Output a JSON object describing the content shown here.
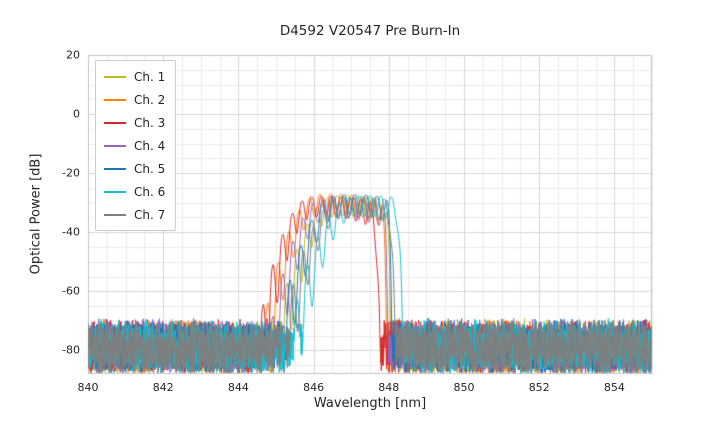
{
  "chart_data": {
    "type": "line",
    "title": "D4592 V20547 Pre Burn-In",
    "xlabel": "Wavelength [nm]",
    "ylabel": "Optical Power [dB]",
    "xlim": [
      840,
      855
    ],
    "ylim": [
      -88,
      20
    ],
    "x_ticks": [
      840,
      842,
      844,
      846,
      848,
      850,
      852,
      854
    ],
    "y_ticks": [
      20,
      0,
      -20,
      -40,
      -60,
      -80
    ],
    "x_minor_step": 0.5,
    "y_minor_step": 5,
    "grid": true,
    "legend_position": "upper left",
    "noise_floor": {
      "mean_db": -79.0,
      "spread_db": 16
    },
    "series": [
      {
        "name": "Ch. 1",
        "color": "#bcbd22",
        "center_nm": 846.9,
        "left_edge_nm": 845.0,
        "right_edge_nm": 848.05,
        "peak_db": -27.5,
        "ripple_period_nm": 0.27,
        "ripple_phase": 0.0,
        "seed": 101
      },
      {
        "name": "Ch. 2",
        "color": "#ff7f0e",
        "center_nm": 846.5,
        "left_edge_nm": 844.65,
        "right_edge_nm": 847.95,
        "peak_db": -27.0,
        "ripple_period_nm": 0.28,
        "ripple_phase": 1.1,
        "seed": 202
      },
      {
        "name": "Ch. 3",
        "color": "#d62728",
        "center_nm": 846.3,
        "left_edge_nm": 844.55,
        "right_edge_nm": 847.75,
        "peak_db": -27.8,
        "ripple_period_nm": 0.26,
        "ripple_phase": 2.2,
        "seed": 303
      },
      {
        "name": "Ch. 4",
        "color": "#9467bd",
        "center_nm": 846.65,
        "left_edge_nm": 844.85,
        "right_edge_nm": 848.0,
        "peak_db": -28.2,
        "ripple_period_nm": 0.27,
        "ripple_phase": 3.0,
        "seed": 404
      },
      {
        "name": "Ch. 5",
        "color": "#1f77b4",
        "center_nm": 847.0,
        "left_edge_nm": 845.05,
        "right_edge_nm": 848.1,
        "peak_db": -27.2,
        "ripple_period_nm": 0.29,
        "ripple_phase": 4.1,
        "seed": 505
      },
      {
        "name": "Ch. 6",
        "color": "#17becf",
        "center_nm": 847.45,
        "left_edge_nm": 845.3,
        "right_edge_nm": 848.35,
        "peak_db": -27.6,
        "ripple_period_nm": 0.28,
        "ripple_phase": 5.0,
        "seed": 606
      },
      {
        "name": "Ch. 7",
        "color": "#7f7f7f",
        "center_nm": 847.1,
        "left_edge_nm": 845.15,
        "right_edge_nm": 848.15,
        "peak_db": -28.0,
        "ripple_period_nm": 0.27,
        "ripple_phase": 0.7,
        "seed": 707
      }
    ]
  }
}
